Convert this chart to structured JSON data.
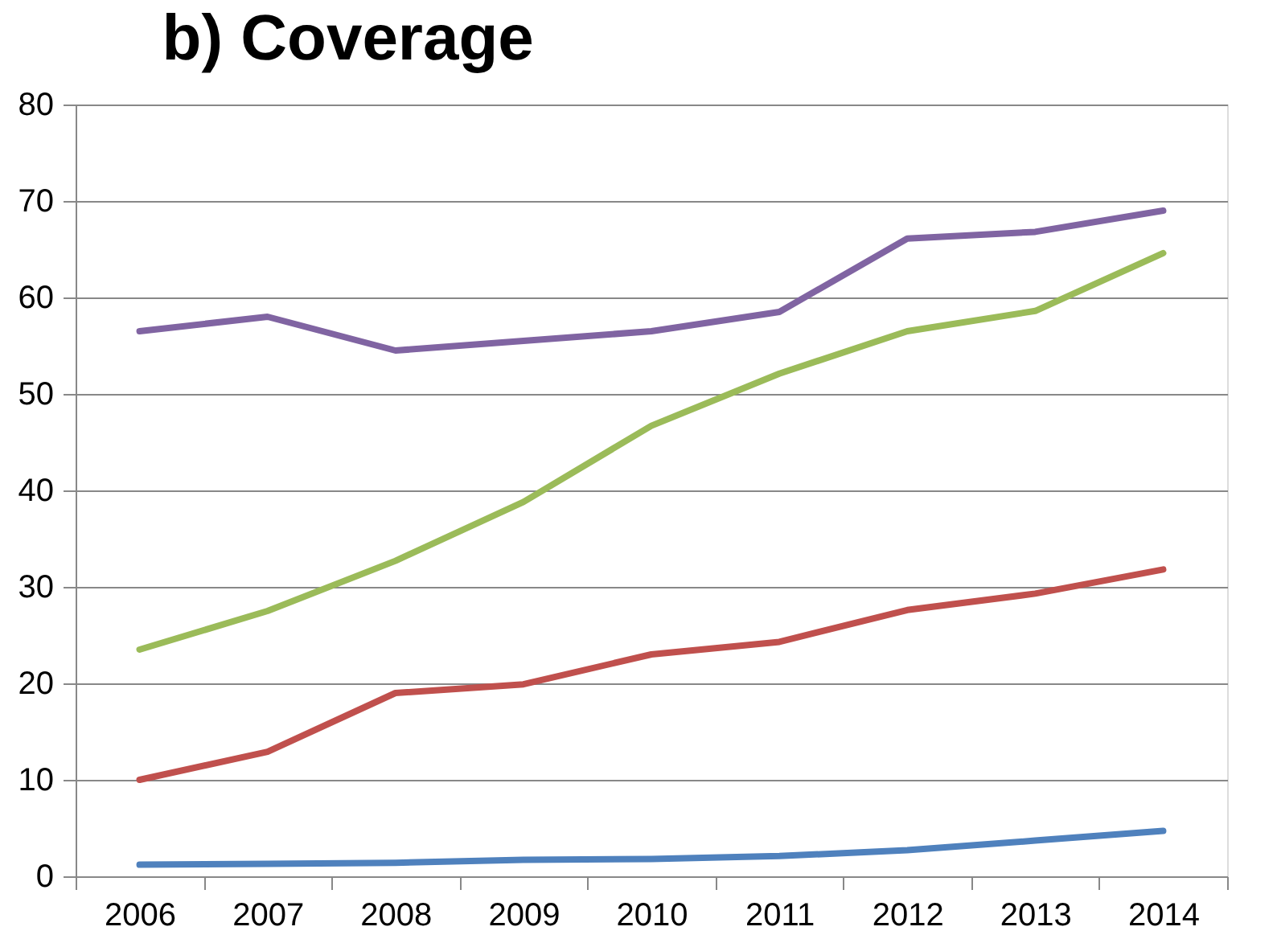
{
  "chart_data": {
    "type": "line",
    "title": "b) Coverage",
    "categories": [
      "2006",
      "2007",
      "2008",
      "2009",
      "2010",
      "2011",
      "2012",
      "2013",
      "2014"
    ],
    "series": [
      {
        "color": "#4f81bd",
        "values": [
          1.2,
          1.3,
          1.4,
          1.7,
          1.8,
          2.1,
          2.7,
          3.7,
          4.7
        ]
      },
      {
        "color": "#c0504d",
        "values": [
          10,
          12.9,
          19,
          19.9,
          23,
          24.3,
          27.6,
          29.3,
          31.8
        ]
      },
      {
        "color": "#9bbb59",
        "values": [
          23.5,
          27.5,
          32.7,
          38.8,
          46.7,
          52.1,
          56.5,
          58.6,
          64.6
        ]
      },
      {
        "color": "#8064a2",
        "values": [
          56.5,
          58,
          54.5,
          55.5,
          56.5,
          58.5,
          66.1,
          66.8,
          69
        ]
      }
    ],
    "ylim": [
      0,
      80
    ],
    "yticks": [
      0,
      10,
      20,
      30,
      40,
      50,
      60,
      70,
      80
    ],
    "grid": "y",
    "legend": false
  }
}
